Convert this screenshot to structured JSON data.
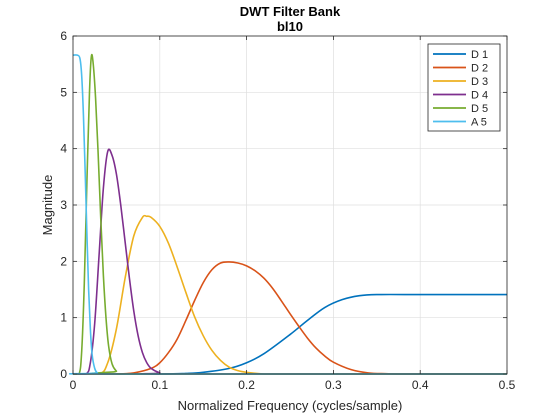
{
  "chart_data": {
    "type": "line",
    "title": "DWT Filter Bank",
    "subtitle": "bl10",
    "xlabel": "Normalized Frequency  (cycles/sample)",
    "ylabel": "Magnitude",
    "xlim": [
      0,
      0.5
    ],
    "ylim": [
      0,
      6
    ],
    "xticks": [
      0,
      0.1,
      0.2,
      0.3,
      0.4,
      0.5
    ],
    "xtick_labels": [
      "0",
      "0.1",
      "0.2",
      "0.3",
      "0.4",
      "0.5"
    ],
    "yticks": [
      0,
      1,
      2,
      3,
      4,
      5,
      6
    ],
    "ytick_labels": [
      "0",
      "1",
      "2",
      "3",
      "4",
      "5",
      "6"
    ],
    "grid": true,
    "legend_position": "top-right",
    "series": [
      {
        "name": "D 1",
        "color": "#0072BD",
        "x": [
          0,
          0.1,
          0.13,
          0.15,
          0.18,
          0.2,
          0.22,
          0.25,
          0.27,
          0.29,
          0.31,
          0.33,
          0.35,
          0.4,
          0.45,
          0.5
        ],
        "y": [
          0,
          0,
          0.01,
          0.03,
          0.1,
          0.2,
          0.36,
          0.7,
          0.95,
          1.18,
          1.32,
          1.39,
          1.41,
          1.41,
          1.41,
          1.41
        ]
      },
      {
        "name": "D 2",
        "color": "#D95319",
        "x": [
          0,
          0.05,
          0.07,
          0.09,
          0.1,
          0.11,
          0.12,
          0.13,
          0.14,
          0.15,
          0.16,
          0.17,
          0.18,
          0.19,
          0.2,
          0.21,
          0.22,
          0.23,
          0.24,
          0.25,
          0.26,
          0.27,
          0.28,
          0.29,
          0.3,
          0.32,
          0.34,
          0.36,
          0.38,
          0.4,
          0.5
        ],
        "y": [
          0,
          0,
          0.02,
          0.1,
          0.2,
          0.38,
          0.62,
          0.95,
          1.3,
          1.62,
          1.85,
          1.97,
          1.99,
          1.97,
          1.92,
          1.83,
          1.7,
          1.52,
          1.3,
          1.07,
          0.85,
          0.64,
          0.46,
          0.32,
          0.21,
          0.08,
          0.02,
          0.005,
          0,
          0,
          0
        ]
      },
      {
        "name": "D 3",
        "color": "#EDB120",
        "x": [
          0,
          0.03,
          0.04,
          0.05,
          0.06,
          0.07,
          0.08,
          0.085,
          0.09,
          0.1,
          0.11,
          0.12,
          0.13,
          0.14,
          0.15,
          0.16,
          0.17,
          0.18,
          0.19,
          0.2,
          0.22,
          0.25,
          0.3,
          0.5
        ],
        "y": [
          0,
          0,
          0.2,
          0.8,
          1.7,
          2.45,
          2.78,
          2.8,
          2.78,
          2.62,
          2.32,
          1.9,
          1.45,
          1.02,
          0.68,
          0.42,
          0.24,
          0.12,
          0.06,
          0.03,
          0,
          0,
          0,
          0
        ]
      },
      {
        "name": "D 4",
        "color": "#7E2F8E",
        "x": [
          0,
          0.015,
          0.02,
          0.025,
          0.03,
          0.035,
          0.04,
          0.045,
          0.05,
          0.055,
          0.06,
          0.065,
          0.07,
          0.075,
          0.08,
          0.085,
          0.09,
          0.1,
          0.11,
          0.5
        ],
        "y": [
          0,
          0,
          0.2,
          0.9,
          2.1,
          3.3,
          3.95,
          3.88,
          3.55,
          3.0,
          2.35,
          1.7,
          1.12,
          0.68,
          0.38,
          0.2,
          0.1,
          0.02,
          0,
          0
        ]
      },
      {
        "name": "D 5",
        "color": "#77AC30",
        "x": [
          0,
          0.007,
          0.01,
          0.013,
          0.016,
          0.019,
          0.021,
          0.023,
          0.026,
          0.029,
          0.032,
          0.035,
          0.038,
          0.041,
          0.045,
          0.05,
          0.055,
          0.5
        ],
        "y": [
          0,
          0,
          0.4,
          1.6,
          3.4,
          5.0,
          5.62,
          5.55,
          4.9,
          3.9,
          2.75,
          1.75,
          1.0,
          0.5,
          0.18,
          0.05,
          0,
          0
        ]
      },
      {
        "name": "A 5",
        "color": "#4DBEEE",
        "x": [
          0,
          0.005,
          0.008,
          0.01,
          0.012,
          0.014,
          0.016,
          0.018,
          0.02,
          0.022,
          0.025,
          0.028,
          0.032,
          0.5
        ],
        "y": [
          5.66,
          5.66,
          5.6,
          5.3,
          4.6,
          3.6,
          2.5,
          1.5,
          0.8,
          0.35,
          0.1,
          0.02,
          0,
          0
        ]
      }
    ]
  }
}
